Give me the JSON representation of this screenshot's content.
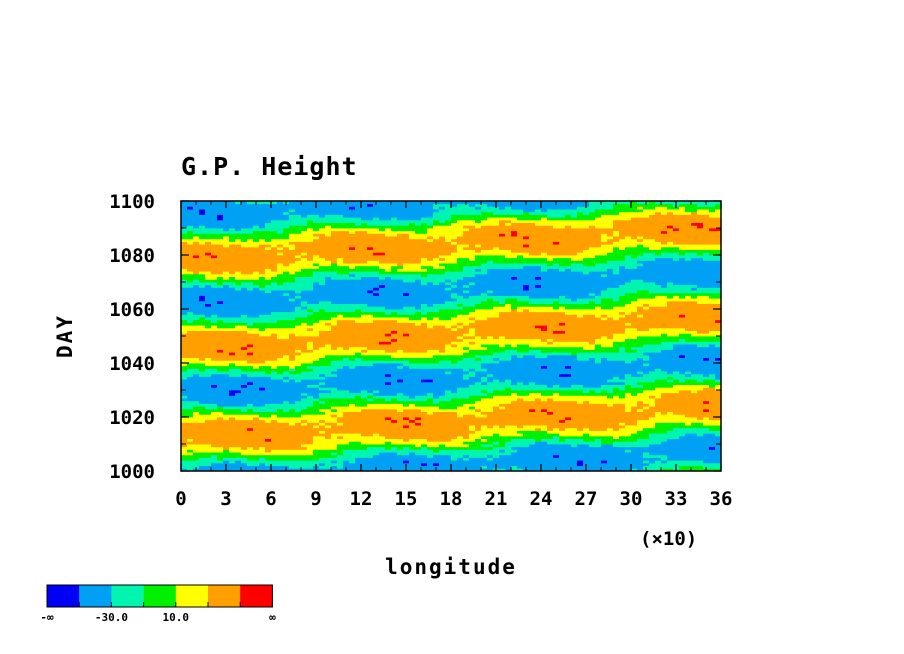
{
  "chart_data": {
    "type": "heatmap",
    "title": "G.P. Height",
    "xlabel": "longitude",
    "ylabel": "DAY",
    "x_scale_note": "(×10)",
    "x_ticks": [
      "0",
      "3",
      "6",
      "9",
      "12",
      "15",
      "18",
      "21",
      "24",
      "27",
      "30",
      "33",
      "36"
    ],
    "y_ticks": [
      "1000",
      "1020",
      "1040",
      "1060",
      "1080",
      "1100"
    ],
    "xlim": [
      0,
      36
    ],
    "ylim": [
      1000,
      1100
    ],
    "x_tick_values": [
      0,
      3,
      6,
      9,
      12,
      15,
      18,
      21,
      24,
      27,
      30,
      33,
      36
    ],
    "y_tick_values": [
      1000,
      1020,
      1040,
      1060,
      1080,
      1100
    ],
    "colorbar": {
      "colors": [
        "#0000f5",
        "#00a0f5",
        "#00f5b0",
        "#00f000",
        "#ffff00",
        "#ffa000",
        "#ff0000"
      ],
      "labels": [
        "-∞",
        "-30.0",
        "10.0",
        "∞"
      ]
    },
    "band_pattern": {
      "description": "anomaly bands tilt upward toward east; band phase shifts ~12 days across 360 deg longitude",
      "period_days": 33,
      "phase_shift_days_per_360": 12
    }
  }
}
